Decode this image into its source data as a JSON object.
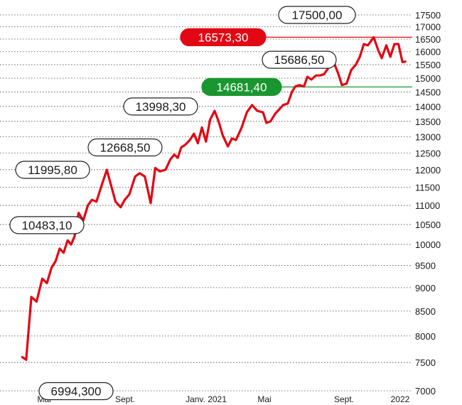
{
  "chart_data": {
    "type": "line",
    "title": "",
    "xlabel": "",
    "ylabel": "",
    "x_tick_labels": [
      "Mai",
      "Sept.",
      "Janv. 2021",
      "Mai",
      "Sept.",
      "2022"
    ],
    "y_ticks": [
      7000,
      7500,
      8000,
      8500,
      9000,
      9500,
      10000,
      10500,
      11000,
      11500,
      12000,
      12500,
      13000,
      13500,
      14000,
      14500,
      15000,
      15500,
      16000,
      16500,
      17000,
      17500
    ],
    "y_tick_labels": [
      "7000",
      "7500",
      "8000",
      "8500",
      "9000",
      "9500",
      "10000",
      "10500",
      "11000",
      "11500",
      "12000",
      "12500",
      "13000",
      "13500",
      "14000",
      "14500",
      "15000",
      "15500",
      "16000",
      "16500",
      "17000",
      "17500"
    ],
    "ylim": [
      7000,
      17500
    ],
    "y_scale": "log",
    "x_months": [
      "2020-03",
      "2020-04",
      "2020-05",
      "2020-06",
      "2020-07",
      "2020-08",
      "2020-09",
      "2020-10",
      "2020-11",
      "2020-12",
      "2021-01",
      "2021-02",
      "2021-03",
      "2021-04",
      "2021-05",
      "2021-06",
      "2021-07",
      "2021-08",
      "2021-09",
      "2021-10",
      "2021-11",
      "2021-12",
      "2022-01"
    ],
    "series": [
      {
        "color": "#e30613",
        "points": [
          [
            "2020-03-16",
            7600
          ],
          [
            "2020-03-23",
            7550
          ],
          [
            "2020-04-01",
            8800
          ],
          [
            "2020-04-10",
            8700
          ],
          [
            "2020-04-20",
            9200
          ],
          [
            "2020-04-28",
            9100
          ],
          [
            "2020-05-06",
            9450
          ],
          [
            "2020-05-13",
            9600
          ],
          [
            "2020-05-20",
            9900
          ],
          [
            "2020-05-27",
            9800
          ],
          [
            "2020-06-03",
            10100
          ],
          [
            "2020-06-09",
            10000
          ],
          [
            "2020-06-15",
            10200
          ],
          [
            "2020-06-22",
            10800
          ],
          [
            "2020-06-30",
            10600
          ],
          [
            "2020-07-08",
            11000
          ],
          [
            "2020-07-15",
            11150
          ],
          [
            "2020-07-23",
            11100
          ],
          [
            "2020-08-01",
            11550
          ],
          [
            "2020-08-10",
            11995.8
          ],
          [
            "2020-08-25",
            11100
          ],
          [
            "2020-09-03",
            10950
          ],
          [
            "2020-09-10",
            11150
          ],
          [
            "2020-09-18",
            11300
          ],
          [
            "2020-09-28",
            11800
          ],
          [
            "2020-10-06",
            11900
          ],
          [
            "2020-10-15",
            11800
          ],
          [
            "2020-10-25",
            11060
          ],
          [
            "2020-11-02",
            12050
          ],
          [
            "2020-11-10",
            11950
          ],
          [
            "2020-11-20",
            12000
          ],
          [
            "2020-11-28",
            12300
          ],
          [
            "2020-12-05",
            12450
          ],
          [
            "2020-12-11",
            12350
          ],
          [
            "2020-12-17",
            12668.5
          ],
          [
            "2020-12-24",
            12750
          ],
          [
            "2021-01-01",
            12900
          ],
          [
            "2021-01-08",
            13100
          ],
          [
            "2021-01-15",
            12800
          ],
          [
            "2021-01-22",
            13300
          ],
          [
            "2021-01-29",
            12850
          ],
          [
            "2021-02-05",
            13550
          ],
          [
            "2021-02-13",
            13850
          ],
          [
            "2021-02-20",
            13500
          ],
          [
            "2021-02-27",
            13050
          ],
          [
            "2021-03-08",
            12700
          ],
          [
            "2021-03-15",
            12950
          ],
          [
            "2021-03-22",
            12900
          ],
          [
            "2021-04-01",
            13300
          ],
          [
            "2021-04-10",
            13800
          ],
          [
            "2021-04-19",
            14050
          ],
          [
            "2021-04-28",
            13850
          ],
          [
            "2021-05-08",
            13800
          ],
          [
            "2021-05-14",
            13450
          ],
          [
            "2021-05-21",
            13500
          ],
          [
            "2021-05-29",
            13750
          ],
          [
            "2021-06-05",
            13900
          ],
          [
            "2021-06-12",
            14050
          ],
          [
            "2021-06-20",
            14100
          ],
          [
            "2021-06-27",
            14500
          ],
          [
            "2021-07-03",
            14700
          ],
          [
            "2021-07-10",
            14750
          ],
          [
            "2021-07-18",
            14700
          ],
          [
            "2021-07-24",
            15050
          ],
          [
            "2021-07-31",
            14950
          ],
          [
            "2021-08-08",
            15100
          ],
          [
            "2021-08-15",
            15100
          ],
          [
            "2021-08-22",
            15150
          ],
          [
            "2021-08-30",
            15400
          ],
          [
            "2021-09-06",
            15686.5
          ],
          [
            "2021-09-15",
            15200
          ],
          [
            "2021-09-22",
            14750
          ],
          [
            "2021-09-30",
            14800
          ],
          [
            "2021-10-08",
            15300
          ],
          [
            "2021-10-16",
            15500
          ],
          [
            "2021-10-23",
            15800
          ],
          [
            "2021-10-30",
            16300
          ],
          [
            "2021-11-06",
            16250
          ],
          [
            "2021-11-16",
            16573.3
          ],
          [
            "2021-11-24",
            16050
          ],
          [
            "2021-11-30",
            15750
          ],
          [
            "2021-12-08",
            16250
          ],
          [
            "2021-12-15",
            15800
          ],
          [
            "2021-12-22",
            16300
          ],
          [
            "2021-12-29",
            16300
          ],
          [
            "2022-01-05",
            15600
          ],
          [
            "2022-01-10",
            15620
          ]
        ]
      }
    ],
    "reference_lines": [
      {
        "value": 16573.3,
        "color": "#e30613"
      },
      {
        "value": 14681.4,
        "color": "#1a9630"
      }
    ],
    "annotations": [
      {
        "text": "17500,00",
        "value": 17500,
        "style": "outline"
      },
      {
        "text": "16573,30",
        "value": 16573.3,
        "style": "filled",
        "fill": "#e30613"
      },
      {
        "text": "15686,50",
        "value": 15686.5,
        "style": "outline"
      },
      {
        "text": "14681,40",
        "value": 14681.4,
        "style": "filled",
        "fill": "#1a9630"
      },
      {
        "text": "13998,30",
        "value": 13998.3,
        "style": "outline"
      },
      {
        "text": "12668,50",
        "value": 12668.5,
        "style": "outline"
      },
      {
        "text": "11995,80",
        "value": 11995.8,
        "style": "outline"
      },
      {
        "text": "10483,10",
        "value": 10483.1,
        "style": "outline"
      },
      {
        "text": "6994,300",
        "value": 6994.3,
        "style": "outline"
      }
    ],
    "grid": "dotted",
    "legend": "none"
  }
}
